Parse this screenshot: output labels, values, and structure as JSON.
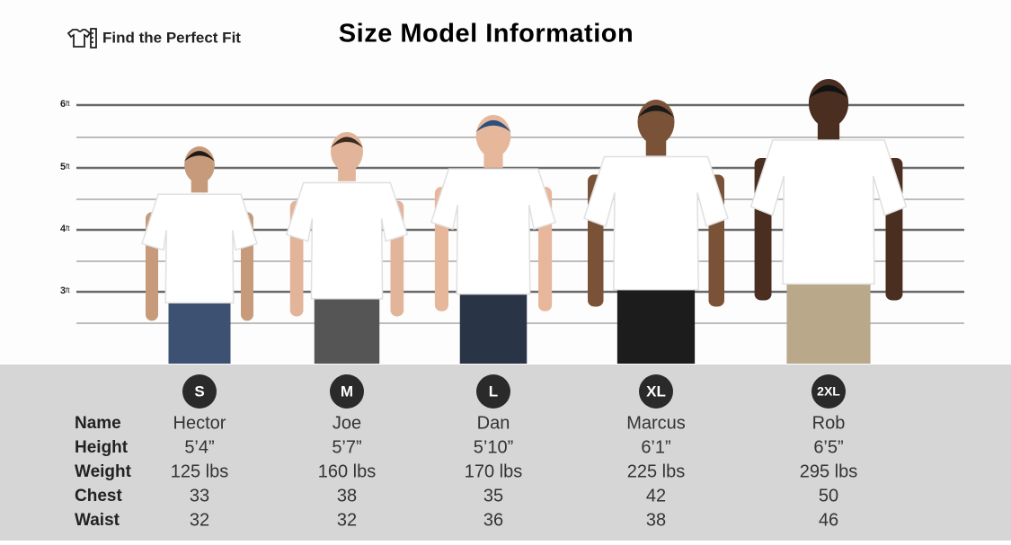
{
  "header": {
    "brand": "Find the Perfect Fit",
    "title": "Size Model Information"
  },
  "scale": [
    {
      "number": "6",
      "unit": "ft"
    },
    {
      "number": "5",
      "unit": "ft"
    },
    {
      "number": "4",
      "unit": "ft"
    },
    {
      "number": "3",
      "unit": "ft"
    }
  ],
  "table": {
    "row_labels": [
      "Name",
      "Height",
      "Weight",
      "Chest",
      "Waist"
    ],
    "models": [
      {
        "size": "S",
        "name": "Hector",
        "height": "5’4”",
        "weight": "125 lbs",
        "chest": "33",
        "waist": "32"
      },
      {
        "size": "M",
        "name": "Joe",
        "height": "5’7”",
        "weight": "160 lbs",
        "chest": "38",
        "waist": "32"
      },
      {
        "size": "L",
        "name": "Dan",
        "height": "5’10”",
        "weight": "170 lbs",
        "chest": "35",
        "waist": "36"
      },
      {
        "size": "XL",
        "name": "Marcus",
        "height": "6’1”",
        "weight": "225 lbs",
        "chest": "42",
        "waist": "38"
      },
      {
        "size": "2XL",
        "name": "Rob",
        "height": "6’5”",
        "weight": "295 lbs",
        "chest": "50",
        "waist": "46"
      }
    ]
  }
}
